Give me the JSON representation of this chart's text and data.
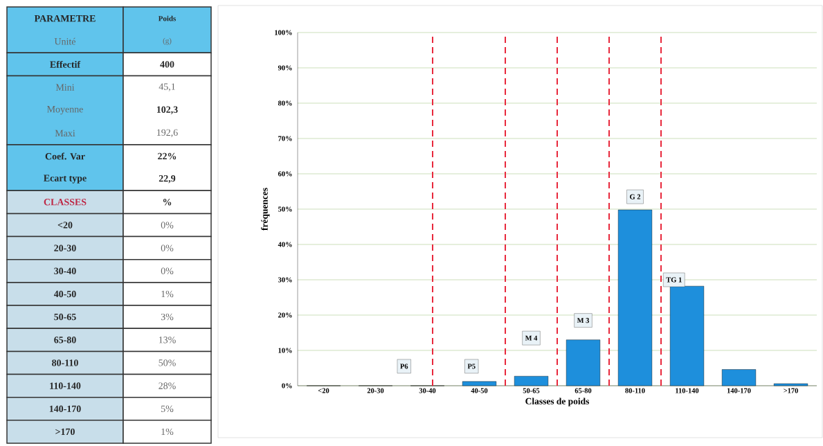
{
  "chart_data": [
    {
      "type": "other",
      "annotations": [
        "PARAMETRE",
        "Poids",
        "Unité",
        "(g)",
        "Effectif",
        "400",
        "Mini",
        "45,1",
        "Moyenne",
        "102,3",
        "Maxi",
        "192,6",
        "Coef. Var",
        "22%",
        "Ecart type",
        "22,9",
        "CLASSES",
        "%",
        "<20",
        "0%",
        "20-30",
        "0%",
        "30-40",
        "0%",
        "40-50",
        "1%",
        "50-65",
        "3%",
        "65-80",
        "13%",
        "80-110",
        "50%",
        "110-140",
        "28%",
        "140-170",
        "5%",
        ">170",
        "1%"
      ]
    },
    {
      "type": "bar",
      "xlabel": "Classes de poids",
      "ylabel": "fréquences",
      "categories": [
        "<20",
        "20-30",
        "30-40",
        "40-50",
        "50-65",
        "65-80",
        "80-110",
        "110-140",
        "140-170",
        ">170"
      ],
      "values": [
        0,
        0,
        0,
        1.2,
        2.7,
        13,
        49.8,
        28.2,
        4.6,
        0.6
      ],
      "color": "#1e8fdc",
      "ylim": [
        0,
        100
      ],
      "yticks": [
        {
          "value": 0,
          "label": "0%"
        },
        {
          "value": 10,
          "label": "10%"
        },
        {
          "value": 20,
          "label": "20%"
        },
        {
          "value": 30,
          "label": "30%"
        },
        {
          "value": 40,
          "label": "40%"
        },
        {
          "value": 50,
          "label": "50%"
        },
        {
          "value": 60,
          "label": "60%"
        },
        {
          "value": 70,
          "label": "70%"
        },
        {
          "value": 80,
          "label": "80%"
        },
        {
          "value": 90,
          "label": "90%"
        },
        {
          "value": 100,
          "label": "100%"
        }
      ],
      "grid": "y",
      "annotations": [
        "P6",
        "P5",
        "M 4",
        "M 3",
        "G 2",
        "TG 1"
      ]
    }
  ]
}
